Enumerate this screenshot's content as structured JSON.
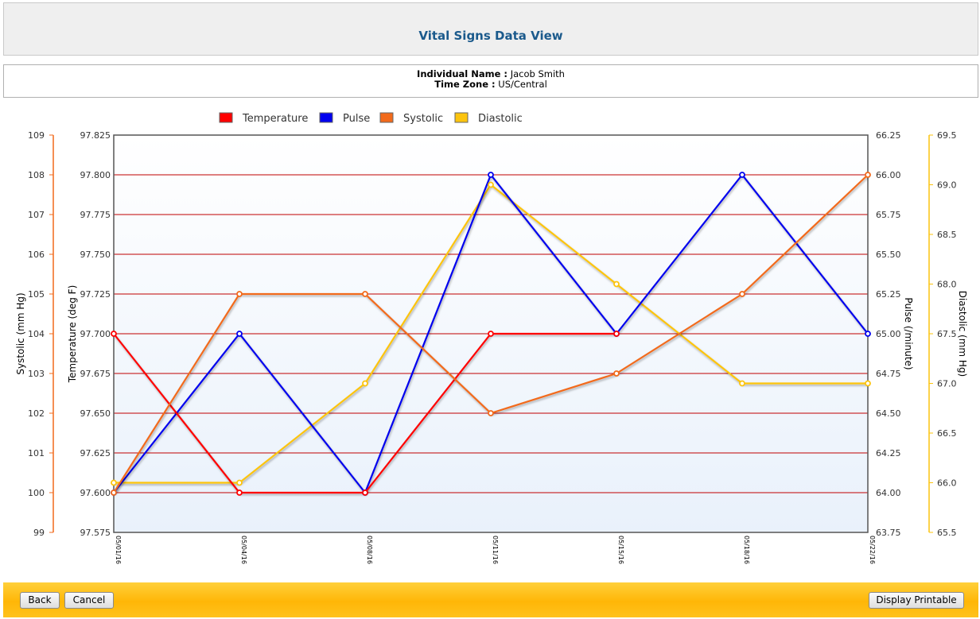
{
  "page": {
    "title": "Vital Signs Data View"
  },
  "info": {
    "name_label": "Individual Name :",
    "name_value": "Jacob Smith",
    "tz_label": "Time Zone :",
    "tz_value": "US/Central"
  },
  "buttons": {
    "back": "Back",
    "cancel": "Cancel",
    "print": "Display Printable"
  },
  "colors": {
    "temperature": "#ff0000",
    "pulse": "#0000ee",
    "systolic": "#f26a1b",
    "diastolic": "#fcc40e",
    "gridline": "#c00000",
    "footer": "#ffbd14",
    "title": "#1b5a8c"
  },
  "chart_data": {
    "type": "line",
    "categories": [
      "05/01/16",
      "05/04/16",
      "05/08/16",
      "05/11/16",
      "05/15/16",
      "05/18/16",
      "05/22/16"
    ],
    "axes": {
      "systolic": {
        "label": "Systolic (mm Hg)",
        "min": 99,
        "max": 109,
        "step": 1,
        "decimals": 0,
        "side": "left-outer"
      },
      "temperature": {
        "label": "Temperature (deg F)",
        "min": 97.575,
        "max": 97.825,
        "step": 0.025,
        "decimals": 3,
        "side": "left-inner"
      },
      "pulse": {
        "label": "Pulse (/minute)",
        "min": 63.75,
        "max": 66.25,
        "step": 0.25,
        "decimals": 2,
        "side": "right-inner"
      },
      "diastolic": {
        "label": "Diastolic (mm Hg)",
        "min": 65.5,
        "max": 69.5,
        "step": 0.5,
        "decimals": 1,
        "side": "right-outer"
      }
    },
    "series": [
      {
        "name": "Temperature",
        "axis": "temperature",
        "color": "#ff0000",
        "values": [
          97.7,
          97.6,
          97.6,
          97.7,
          97.7,
          null,
          null
        ]
      },
      {
        "name": "Pulse",
        "axis": "pulse",
        "color": "#0000ee",
        "values": [
          64,
          65,
          64,
          66,
          65,
          66,
          65
        ]
      },
      {
        "name": "Systolic",
        "axis": "systolic",
        "color": "#f26a1b",
        "values": [
          100,
          105,
          105,
          102,
          103,
          105,
          108
        ]
      },
      {
        "name": "Diastolic",
        "axis": "diastolic",
        "color": "#fcc40e",
        "values": [
          66,
          66,
          67,
          69,
          68,
          67,
          67
        ]
      }
    ],
    "grid": true,
    "legend": "top"
  }
}
